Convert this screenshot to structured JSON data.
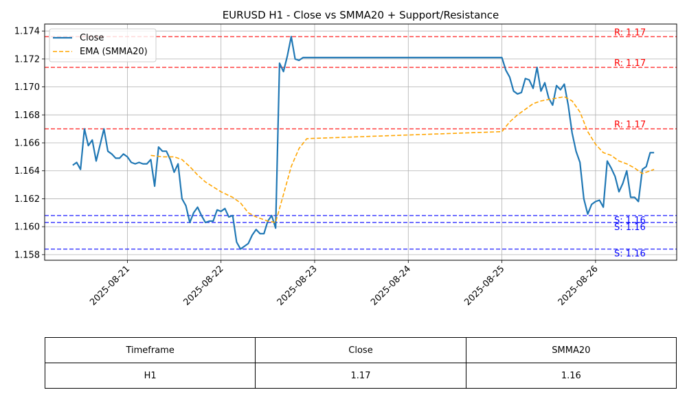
{
  "chart_data": {
    "type": "line",
    "title": "EURUSD H1 - Close vs SMMA20 + Support/Resistance",
    "xlabel": "",
    "ylabel": "",
    "x_ticks": [
      "2025-08-21",
      "2025-08-22",
      "2025-08-23",
      "2025-08-24",
      "2025-08-25",
      "2025-08-26"
    ],
    "y_ticks": [
      "1.158",
      "1.160",
      "1.162",
      "1.164",
      "1.166",
      "1.168",
      "1.170",
      "1.172",
      "1.174"
    ],
    "ylim": [
      1.1576,
      1.1745
    ],
    "xlim": [
      "2025-08-20T02:48",
      "2025-08-26T20:48"
    ],
    "grid": true,
    "legend_position": "top-left",
    "series": [
      {
        "name": "Close",
        "color": "#1f77b4",
        "style": "solid",
        "points": [
          [
            "2025-08-20T10:00",
            1.1644
          ],
          [
            "2025-08-20T11:00",
            1.1646
          ],
          [
            "2025-08-20T12:00",
            1.1641
          ],
          [
            "2025-08-20T13:00",
            1.167
          ],
          [
            "2025-08-20T14:00",
            1.1658
          ],
          [
            "2025-08-20T15:00",
            1.1662
          ],
          [
            "2025-08-20T16:00",
            1.1647
          ],
          [
            "2025-08-20T18:00",
            1.167
          ],
          [
            "2025-08-20T19:00",
            1.1654
          ],
          [
            "2025-08-20T20:00",
            1.1652
          ],
          [
            "2025-08-20T21:00",
            1.1649
          ],
          [
            "2025-08-20T22:00",
            1.1649
          ],
          [
            "2025-08-20T23:00",
            1.1652
          ],
          [
            "2025-08-21T00:00",
            1.165
          ],
          [
            "2025-08-21T01:00",
            1.1646
          ],
          [
            "2025-08-21T02:00",
            1.1645
          ],
          [
            "2025-08-21T03:00",
            1.1646
          ],
          [
            "2025-08-21T04:00",
            1.1645
          ],
          [
            "2025-08-21T05:00",
            1.1645
          ],
          [
            "2025-08-21T06:00",
            1.1648
          ],
          [
            "2025-08-21T07:00",
            1.1629
          ],
          [
            "2025-08-21T08:00",
            1.1657
          ],
          [
            "2025-08-21T09:00",
            1.1654
          ],
          [
            "2025-08-21T10:00",
            1.1654
          ],
          [
            "2025-08-21T11:00",
            1.1648
          ],
          [
            "2025-08-21T12:00",
            1.1639
          ],
          [
            "2025-08-21T13:00",
            1.1645
          ],
          [
            "2025-08-21T14:00",
            1.162
          ],
          [
            "2025-08-21T15:00",
            1.1615
          ],
          [
            "2025-08-21T16:00",
            1.1603
          ],
          [
            "2025-08-21T17:00",
            1.161
          ],
          [
            "2025-08-21T18:00",
            1.1614
          ],
          [
            "2025-08-21T19:00",
            1.1608
          ],
          [
            "2025-08-21T20:00",
            1.1603
          ],
          [
            "2025-08-21T21:00",
            1.1604
          ],
          [
            "2025-08-21T22:00",
            1.1604
          ],
          [
            "2025-08-21T23:00",
            1.1612
          ],
          [
            "2025-08-22T00:00",
            1.1611
          ],
          [
            "2025-08-22T01:00",
            1.1613
          ],
          [
            "2025-08-22T02:00",
            1.1607
          ],
          [
            "2025-08-22T03:00",
            1.1608
          ],
          [
            "2025-08-22T04:00",
            1.1589
          ],
          [
            "2025-08-22T05:00",
            1.1584
          ],
          [
            "2025-08-22T06:00",
            1.1586
          ],
          [
            "2025-08-22T07:00",
            1.1588
          ],
          [
            "2025-08-22T08:00",
            1.1594
          ],
          [
            "2025-08-22T09:00",
            1.1598
          ],
          [
            "2025-08-22T10:00",
            1.1595
          ],
          [
            "2025-08-22T11:00",
            1.1595
          ],
          [
            "2025-08-22T12:00",
            1.1604
          ],
          [
            "2025-08-22T13:00",
            1.1608
          ],
          [
            "2025-08-22T14:00",
            1.1599
          ],
          [
            "2025-08-22T15:00",
            1.1717
          ],
          [
            "2025-08-22T16:00",
            1.1711
          ],
          [
            "2025-08-22T17:00",
            1.1722
          ],
          [
            "2025-08-22T18:00",
            1.1736
          ],
          [
            "2025-08-22T19:00",
            1.172
          ],
          [
            "2025-08-22T20:00",
            1.1719
          ],
          [
            "2025-08-22T21:00",
            1.1721
          ],
          [
            "2025-08-22T22:00",
            1.1721
          ],
          [
            "2025-08-25T00:00",
            1.1721
          ],
          [
            "2025-08-25T01:00",
            1.1712
          ],
          [
            "2025-08-25T02:00",
            1.1707
          ],
          [
            "2025-08-25T03:00",
            1.1697
          ],
          [
            "2025-08-25T04:00",
            1.1695
          ],
          [
            "2025-08-25T05:00",
            1.1696
          ],
          [
            "2025-08-25T06:00",
            1.1706
          ],
          [
            "2025-08-25T07:00",
            1.1705
          ],
          [
            "2025-08-25T08:00",
            1.1699
          ],
          [
            "2025-08-25T09:00",
            1.1714
          ],
          [
            "2025-08-25T10:00",
            1.1697
          ],
          [
            "2025-08-25T11:00",
            1.1703
          ],
          [
            "2025-08-25T12:00",
            1.1692
          ],
          [
            "2025-08-25T13:00",
            1.1687
          ],
          [
            "2025-08-25T14:00",
            1.1701
          ],
          [
            "2025-08-25T15:00",
            1.1698
          ],
          [
            "2025-08-25T16:00",
            1.1702
          ],
          [
            "2025-08-25T17:00",
            1.1687
          ],
          [
            "2025-08-25T18:00",
            1.1667
          ],
          [
            "2025-08-25T19:00",
            1.1654
          ],
          [
            "2025-08-25T20:00",
            1.1646
          ],
          [
            "2025-08-25T21:00",
            1.162
          ],
          [
            "2025-08-25T22:00",
            1.1609
          ],
          [
            "2025-08-25T23:00",
            1.1616
          ],
          [
            "2025-08-26T00:00",
            1.1618
          ],
          [
            "2025-08-26T01:00",
            1.1619
          ],
          [
            "2025-08-26T02:00",
            1.1614
          ],
          [
            "2025-08-26T03:00",
            1.1647
          ],
          [
            "2025-08-26T04:00",
            1.1642
          ],
          [
            "2025-08-26T05:00",
            1.1636
          ],
          [
            "2025-08-26T06:00",
            1.1625
          ],
          [
            "2025-08-26T07:00",
            1.1631
          ],
          [
            "2025-08-26T08:00",
            1.164
          ],
          [
            "2025-08-26T09:00",
            1.1621
          ],
          [
            "2025-08-26T10:00",
            1.1621
          ],
          [
            "2025-08-26T11:00",
            1.1618
          ],
          [
            "2025-08-26T12:00",
            1.1641
          ],
          [
            "2025-08-26T13:00",
            1.1643
          ],
          [
            "2025-08-26T14:00",
            1.1653
          ],
          [
            "2025-08-26T15:00",
            1.1653
          ]
        ]
      },
      {
        "name": "EMA (SMMA20)",
        "color": "#ffa500",
        "style": "dashed",
        "points": [
          [
            "2025-08-21T06:00",
            1.1651
          ],
          [
            "2025-08-21T09:00",
            1.165
          ],
          [
            "2025-08-21T12:00",
            1.165
          ],
          [
            "2025-08-21T14:00",
            1.1648
          ],
          [
            "2025-08-21T16:00",
            1.1643
          ],
          [
            "2025-08-21T18:00",
            1.1637
          ],
          [
            "2025-08-21T20:00",
            1.1632
          ],
          [
            "2025-08-22T00:00",
            1.1625
          ],
          [
            "2025-08-22T03:00",
            1.1621
          ],
          [
            "2025-08-22T05:00",
            1.1617
          ],
          [
            "2025-08-22T07:00",
            1.161
          ],
          [
            "2025-08-22T09:00",
            1.1607
          ],
          [
            "2025-08-22T12:00",
            1.1604
          ],
          [
            "2025-08-22T14:00",
            1.1603
          ],
          [
            "2025-08-22T16:00",
            1.1623
          ],
          [
            "2025-08-22T18:00",
            1.1643
          ],
          [
            "2025-08-22T20:00",
            1.1656
          ],
          [
            "2025-08-22T22:00",
            1.1663
          ],
          [
            "2025-08-25T00:00",
            1.1668
          ],
          [
            "2025-08-25T02:00",
            1.1675
          ],
          [
            "2025-08-25T04:00",
            1.168
          ],
          [
            "2025-08-25T06:00",
            1.1684
          ],
          [
            "2025-08-25T08:00",
            1.1688
          ],
          [
            "2025-08-25T10:00",
            1.169
          ],
          [
            "2025-08-25T12:00",
            1.1691
          ],
          [
            "2025-08-25T14:00",
            1.1692
          ],
          [
            "2025-08-25T16:00",
            1.1693
          ],
          [
            "2025-08-25T18:00",
            1.169
          ],
          [
            "2025-08-25T20:00",
            1.1682
          ],
          [
            "2025-08-25T22:00",
            1.1668
          ],
          [
            "2025-08-26T00:00",
            1.1659
          ],
          [
            "2025-08-26T02:00",
            1.1653
          ],
          [
            "2025-08-26T04:00",
            1.1651
          ],
          [
            "2025-08-26T06:00",
            1.1647
          ],
          [
            "2025-08-26T08:00",
            1.1645
          ],
          [
            "2025-08-26T10:00",
            1.1642
          ],
          [
            "2025-08-26T12:00",
            1.1638
          ],
          [
            "2025-08-26T15:00",
            1.1641
          ]
        ]
      }
    ],
    "resistance_levels": [
      {
        "value": 1.1736,
        "label": "R: 1.17"
      },
      {
        "value": 1.1714,
        "label": "R: 1.17"
      },
      {
        "value": 1.167,
        "label": "R: 1.17"
      }
    ],
    "support_levels": [
      {
        "value": 1.1608,
        "label": "S: 1.16"
      },
      {
        "value": 1.1603,
        "label": "S: 1.16"
      },
      {
        "value": 1.1584,
        "label": "S: 1.16"
      }
    ],
    "table": {
      "headers": [
        "Timeframe",
        "Close",
        "SMMA20"
      ],
      "rows": [
        [
          "H1",
          "1.17",
          "1.16"
        ]
      ]
    }
  }
}
